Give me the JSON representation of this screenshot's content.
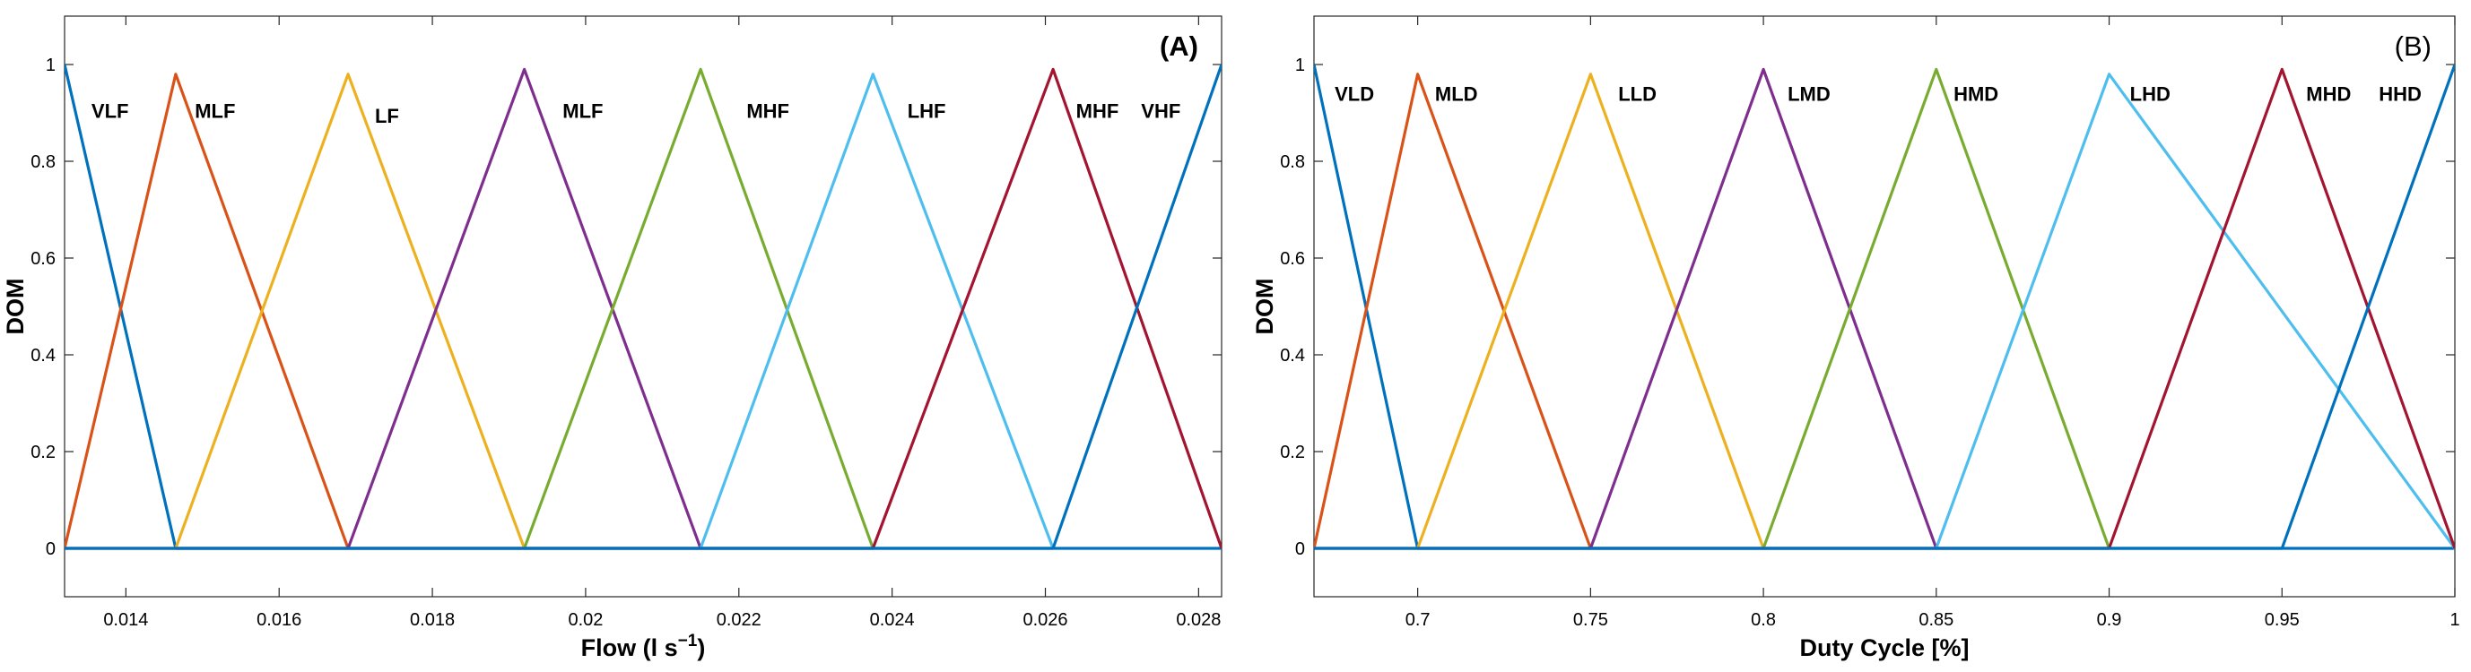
{
  "chart_data": [
    {
      "type": "line",
      "subtype": "triangular-membership-functions",
      "panel_label": "(A)",
      "panel_label_bold": true,
      "xlabel_main": "Flow (l s",
      "xlabel_sup": "−1",
      "xlabel_close": ")",
      "ylabel": "DOM",
      "xlim": [
        0.0132,
        0.0283
      ],
      "ylim": [
        -0.1,
        1.1
      ],
      "xticks": [
        0.014,
        0.016,
        0.018,
        0.02,
        0.022,
        0.024,
        0.026,
        0.028
      ],
      "xtick_labels": [
        "0.014",
        "0.016",
        "0.018",
        "0.02",
        "0.022",
        "0.024",
        "0.026",
        "0.028"
      ],
      "yticks": [
        0,
        0.2,
        0.4,
        0.6,
        0.8,
        1
      ],
      "ytick_labels": [
        "0",
        "0.2",
        "0.4",
        "0.6",
        "0.8",
        "1"
      ],
      "series": [
        {
          "name": "VLF",
          "color": "#0072BD",
          "points": [
            [
              0.0132,
              1
            ],
            [
              0.01465,
              0
            ],
            [
              0.0283,
              0
            ]
          ],
          "label_at": [
            0.01355,
            0.89
          ]
        },
        {
          "name": "MLF",
          "color": "#D95319",
          "points": [
            [
              0.0132,
              0
            ],
            [
              0.01465,
              0.98
            ],
            [
              0.0169,
              0
            ]
          ],
          "label_at": [
            0.0149,
            0.89
          ]
        },
        {
          "name": "LF",
          "color": "#EDB120",
          "points": [
            [
              0.01465,
              0
            ],
            [
              0.0169,
              0.98
            ],
            [
              0.0192,
              0
            ]
          ],
          "label_at": [
            0.01725,
            0.88
          ]
        },
        {
          "name": "MLF",
          "color": "#7E2F8E",
          "points": [
            [
              0.0169,
              0
            ],
            [
              0.0192,
              0.99
            ],
            [
              0.0215,
              0
            ]
          ],
          "label_at": [
            0.0197,
            0.89
          ]
        },
        {
          "name": "MHF",
          "color": "#77AC30",
          "points": [
            [
              0.0192,
              0
            ],
            [
              0.0215,
              0.99
            ],
            [
              0.02375,
              0
            ]
          ],
          "label_at": [
            0.0221,
            0.89
          ]
        },
        {
          "name": "LHF",
          "color": "#4DBEEE",
          "points": [
            [
              0.0215,
              0
            ],
            [
              0.02375,
              0.98
            ],
            [
              0.0261,
              0
            ]
          ],
          "label_at": [
            0.0242,
            0.89
          ]
        },
        {
          "name": "MHF",
          "color": "#A2142F",
          "points": [
            [
              0.0132,
              0
            ],
            [
              0.02375,
              0
            ],
            [
              0.0261,
              0.99
            ],
            [
              0.0283,
              0
            ]
          ],
          "label_at": [
            0.0264,
            0.89
          ]
        },
        {
          "name": "VHF",
          "color": "#0072BD",
          "points": [
            [
              0.0132,
              0
            ],
            [
              0.0261,
              0
            ],
            [
              0.0283,
              1
            ]
          ],
          "label_at": [
            0.02725,
            0.89
          ]
        }
      ]
    },
    {
      "type": "line",
      "subtype": "triangular-membership-functions",
      "panel_label": "(B)",
      "panel_label_bold": false,
      "xlabel_main": "Duty Cycle [%]",
      "xlabel_sup": "",
      "xlabel_close": "",
      "ylabel": "DOM",
      "xlim": [
        0.67,
        1.0
      ],
      "ylim": [
        -0.1,
        1.1
      ],
      "xticks": [
        0.7,
        0.75,
        0.8,
        0.85,
        0.9,
        0.95,
        1
      ],
      "xtick_labels": [
        "0.7",
        "0.75",
        "0.8",
        "0.85",
        "0.9",
        "0.95",
        "1"
      ],
      "yticks": [
        0,
        0.2,
        0.4,
        0.6,
        0.8,
        1
      ],
      "ytick_labels": [
        "0",
        "0.2",
        "0.4",
        "0.6",
        "0.8",
        "1"
      ],
      "series": [
        {
          "name": "VLD",
          "color": "#0072BD",
          "points": [
            [
              0.67,
              1
            ],
            [
              0.7,
              0
            ],
            [
              1.0,
              0
            ]
          ],
          "label_at": [
            0.676,
            0.925
          ]
        },
        {
          "name": "MLD",
          "color": "#D95319",
          "points": [
            [
              0.67,
              0
            ],
            [
              0.7,
              0.98
            ],
            [
              0.75,
              0
            ]
          ],
          "label_at": [
            0.705,
            0.925
          ]
        },
        {
          "name": "LLD",
          "color": "#EDB120",
          "points": [
            [
              0.7,
              0
            ],
            [
              0.75,
              0.98
            ],
            [
              0.8,
              0
            ]
          ],
          "label_at": [
            0.758,
            0.925
          ]
        },
        {
          "name": "LMD",
          "color": "#7E2F8E",
          "points": [
            [
              0.75,
              0
            ],
            [
              0.8,
              0.99
            ],
            [
              0.85,
              0
            ]
          ],
          "label_at": [
            0.807,
            0.925
          ]
        },
        {
          "name": "HMD",
          "color": "#77AC30",
          "points": [
            [
              0.8,
              0
            ],
            [
              0.85,
              0.99
            ],
            [
              0.9,
              0
            ]
          ],
          "label_at": [
            0.855,
            0.925
          ]
        },
        {
          "name": "LHD",
          "color": "#4DBEEE",
          "points": [
            [
              0.85,
              0
            ],
            [
              0.9,
              0.98
            ],
            [
              1.0,
              0
            ]
          ],
          "label_at": [
            0.906,
            0.925
          ]
        },
        {
          "name": "MHD",
          "color": "#A2142F",
          "points": [
            [
              0.67,
              0
            ],
            [
              0.9,
              0
            ],
            [
              0.95,
              0.99
            ],
            [
              1.0,
              0
            ]
          ],
          "label_at": [
            0.957,
            0.925
          ]
        },
        {
          "name": "HHD",
          "color": "#0072BD",
          "points": [
            [
              0.67,
              0
            ],
            [
              0.95,
              0
            ],
            [
              1.0,
              1
            ]
          ],
          "label_at": [
            0.978,
            0.925
          ]
        }
      ]
    }
  ]
}
